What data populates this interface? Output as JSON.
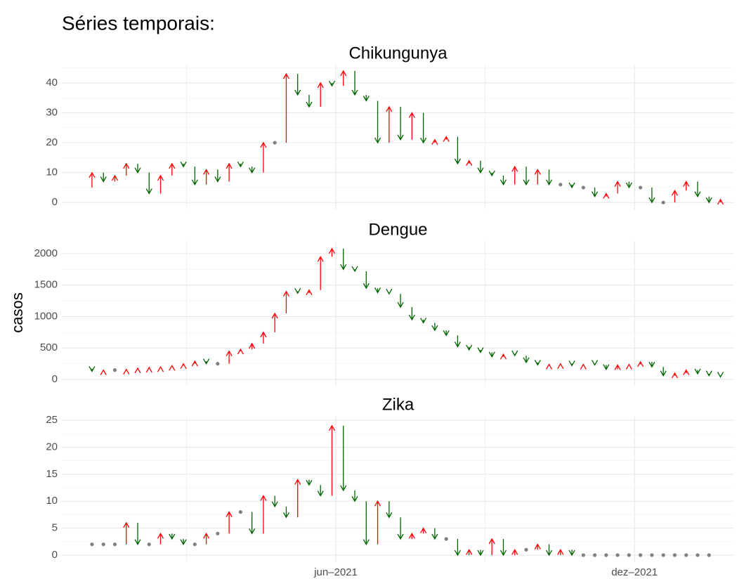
{
  "title": "Séries temporais:",
  "ylabel": "casos",
  "grid": true,
  "colors": {
    "up": "#ff0000",
    "down": "#006400",
    "same": "#808080"
  },
  "x_axis": {
    "x": [
      1,
      2,
      3,
      4,
      5,
      6,
      7,
      8,
      9,
      10,
      11,
      12,
      13,
      14,
      15,
      16,
      17,
      18,
      19,
      20,
      21,
      22,
      23,
      24,
      25,
      26,
      27,
      28,
      29,
      30,
      31,
      32,
      33,
      34,
      35,
      36,
      37,
      38,
      39,
      40,
      41,
      42,
      43,
      44,
      45,
      46,
      47,
      48,
      49,
      50,
      51,
      52,
      53,
      54,
      55,
      56
    ],
    "xlim": [
      -1.64,
      57.2
    ],
    "xticks": [
      {
        "value": 22.34,
        "label": "jun–2021"
      },
      {
        "value": 48.48,
        "label": "dez–2021"
      }
    ]
  },
  "chart_data": [
    {
      "type": "arrow",
      "title": "Chikungunya",
      "previous": 5,
      "values": [
        10,
        7,
        9,
        13,
        10,
        3,
        9,
        13,
        12,
        6,
        11,
        7,
        13,
        12,
        10,
        20,
        20,
        43,
        36,
        32,
        40,
        39,
        44,
        36,
        34,
        20,
        32,
        21,
        30,
        20,
        21,
        22,
        13,
        14,
        10,
        9,
        6,
        12,
        6,
        11,
        6,
        6,
        5,
        5,
        2,
        3,
        7,
        5,
        5,
        0,
        0,
        4,
        7,
        2,
        0,
        1
      ],
      "ylim": [
        -2.3,
        46.1
      ],
      "yticks": [
        0,
        10,
        20,
        30,
        40
      ]
    },
    {
      "type": "arrow",
      "title": "Dengue",
      "previous": 170,
      "values": [
        130,
        150,
        150,
        160,
        180,
        190,
        200,
        220,
        250,
        290,
        250,
        250,
        450,
        480,
        570,
        750,
        1050,
        1400,
        1370,
        1420,
        1950,
        2080,
        1750,
        1720,
        1450,
        1380,
        1360,
        1150,
        950,
        900,
        780,
        700,
        520,
        470,
        430,
        360,
        400,
        380,
        270,
        230,
        240,
        250,
        220,
        240,
        230,
        160,
        230,
        240,
        280,
        200,
        60,
        100,
        150,
        90,
        60,
        40
      ],
      "ylim": [
        -100,
        2200
      ],
      "yticks": [
        0,
        500,
        1000,
        1500,
        2000
      ]
    },
    {
      "type": "arrow",
      "title": "Zika",
      "previous": 2,
      "values": [
        2,
        2,
        2,
        6,
        2,
        2,
        4,
        3,
        2,
        2,
        4,
        4,
        8,
        8,
        4,
        11,
        9,
        7,
        14,
        13,
        11,
        24,
        12,
        10,
        2,
        10,
        7,
        3,
        4,
        5,
        3,
        3,
        0,
        1,
        0,
        3,
        0,
        1,
        1,
        2,
        0,
        1,
        0,
        0,
        0,
        0,
        0,
        0,
        0,
        0,
        0,
        0,
        0,
        0,
        0,
        null
      ],
      "ylim": [
        -1.3,
        25.8
      ],
      "yticks": [
        0,
        5,
        10,
        15,
        20,
        25
      ]
    }
  ]
}
